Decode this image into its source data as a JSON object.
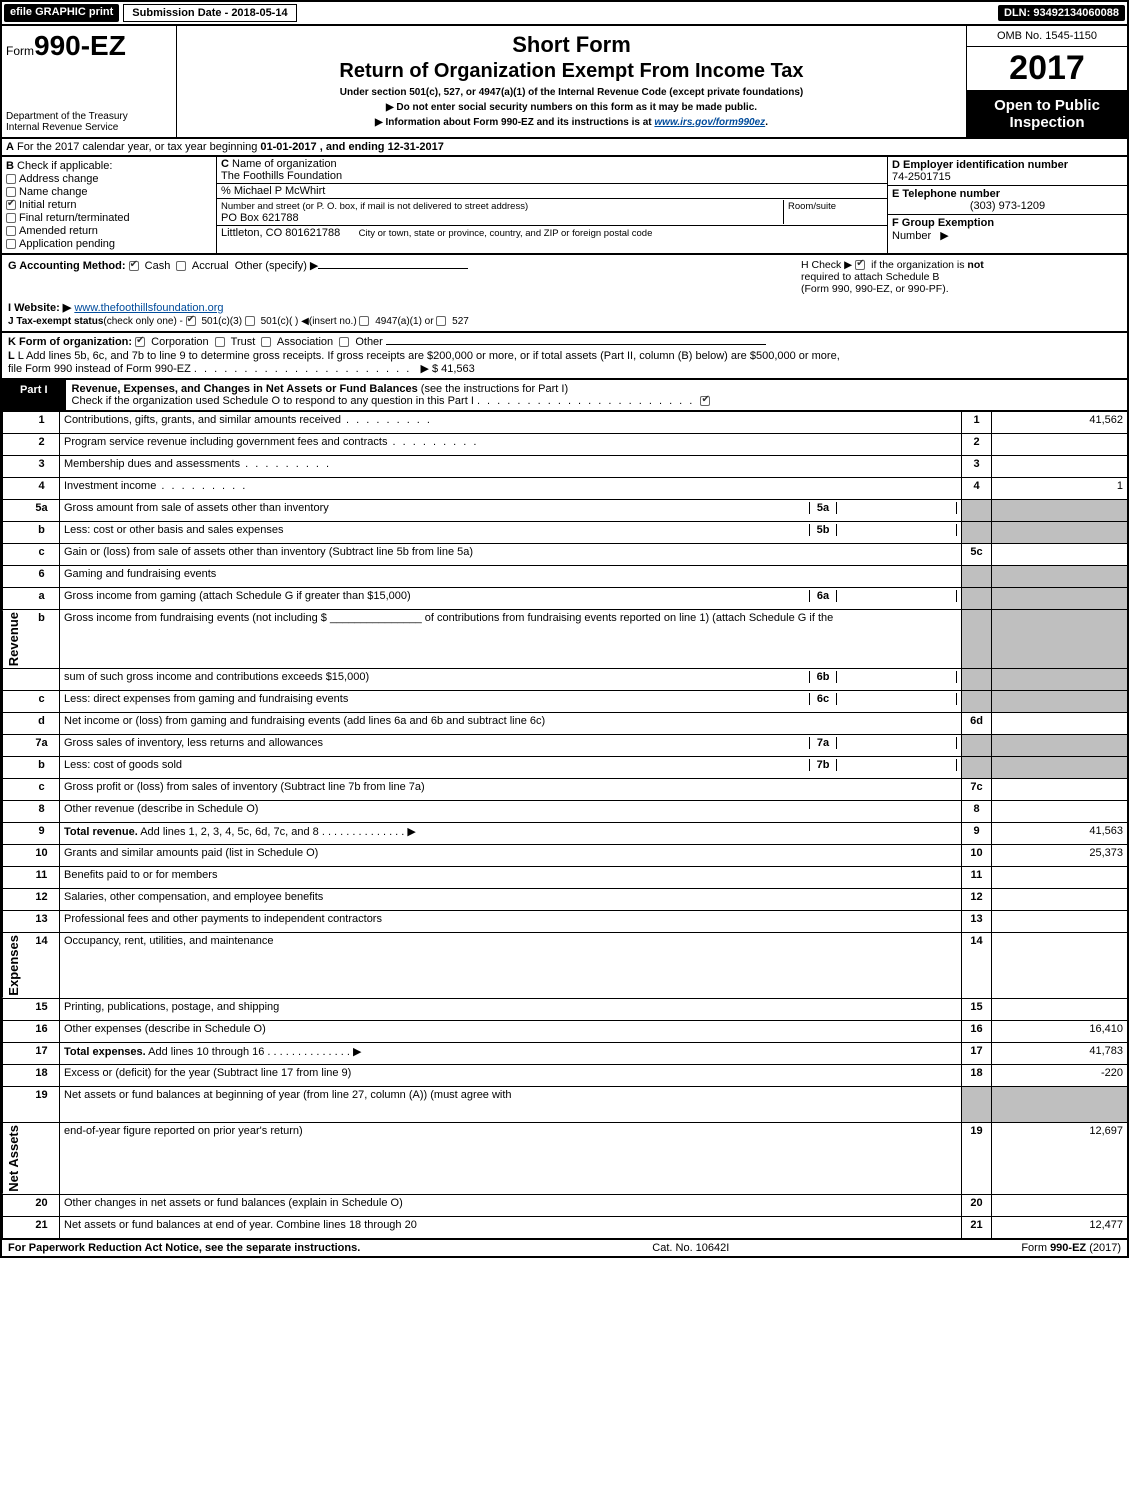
{
  "topbar": {
    "efile": "efile GRAPHIC print",
    "submission_label": "Submission Date - 2018-05-14",
    "dln": "DLN: 93492134060088"
  },
  "header": {
    "form_prefix": "Form",
    "form_no": "990-EZ",
    "dept1": "Department of the Treasury",
    "dept2": "Internal Revenue Service",
    "shortform": "Short Form",
    "title": "Return of Organization Exempt From Income Tax",
    "subtitle": "Under section 501(c), 527, or 4947(a)(1) of the Internal Revenue Code (except private foundations)",
    "warn1": "Do not enter social security numbers on this form as it may be made public.",
    "warn2_pre": "Information about Form 990-EZ and its instructions is at ",
    "warn2_link": "www.irs.gov/form990ez",
    "warn2_post": ".",
    "omb": "OMB No. 1545-1150",
    "year": "2017",
    "open1": "Open to Public",
    "open2": "Inspection"
  },
  "secA": {
    "A": "A",
    "text_pre": "For the 2017 calendar year, or tax year beginning ",
    "begin": "01-01-2017",
    "mid": ", and ending ",
    "end": "12-31-2017"
  },
  "secB": {
    "B": "B",
    "label": "Check if applicable:",
    "items": [
      {
        "label": "Address change",
        "checked": false
      },
      {
        "label": "Name change",
        "checked": false
      },
      {
        "label": "Initial return",
        "checked": true
      },
      {
        "label": "Final return/terminated",
        "checked": false
      },
      {
        "label": "Amended return",
        "checked": false
      },
      {
        "label": "Application pending",
        "checked": false
      }
    ]
  },
  "secC": {
    "c_label_bold": "C",
    "c_label": "Name of organization",
    "org": "The Foothills Foundation",
    "care_of": "% Michael P McWhirt",
    "addr_label": "Number and street (or P. O. box, if mail is not delivered to street address)",
    "room_label": "Room/suite",
    "addr": "PO Box 621788",
    "city_label": "City or town, state or province, country, and ZIP or foreign postal code",
    "city": "Littleton, CO  801621788"
  },
  "secD": {
    "d": "D Employer identification number",
    "ein": "74-2501715",
    "e": "E Telephone number",
    "phone": "(303) 973-1209",
    "f_label": "F Group Exemption",
    "f_label2": "Number",
    "f_arrow": "▶"
  },
  "secG": {
    "g_label": "G Accounting Method:",
    "cash": "Cash",
    "accrual": "Accrual",
    "other": "Other (specify) ▶",
    "h_text1": "H   Check ▶",
    "h_text2": "if the organization is",
    "h_not": "not",
    "h_text3": "required to attach Schedule B",
    "h_text4": "(Form 990, 990-EZ, or 990-PF).",
    "i_label": "I Website: ▶",
    "website": "www.thefoothillsfoundation.org",
    "j_label": "J Tax-exempt status",
    "j_note": "(check only one) -",
    "j1": "501(c)(3)",
    "j2": "501(c)(  )",
    "j2_ins": "◀(insert no.)",
    "j3": "4947(a)(1) or",
    "j4": "527"
  },
  "secK": {
    "k_label": "K Form of organization:",
    "opts": [
      "Corporation",
      "Trust",
      "Association",
      "Other"
    ],
    "checked_idx": 0,
    "l_text1": "L Add lines 5b, 6c, and 7b to line 9 to determine gross receipts. If gross receipts are $200,000 or more, or if total assets (Part II, column (B) below) are $500,000 or more,",
    "l_text2": "file Form 990 instead of Form 990-EZ",
    "l_amount": "▶ $ 41,563"
  },
  "partI": {
    "label": "Part I",
    "title_bold": "Revenue, Expenses, and Changes in Net Assets or Fund Balances",
    "title_rest": " (see the instructions for Part I)",
    "check_text": "Check if the organization used Schedule O to respond to any question in this Part I",
    "check_checked": true
  },
  "sections": {
    "revenue": "Revenue",
    "expenses": "Expenses",
    "netassets": "Net Assets"
  },
  "lines": [
    {
      "section": "revenue",
      "num": "1",
      "text": "Contributions, gifts, grants, and similar amounts received",
      "box": "1",
      "val": "41,562",
      "dots": true
    },
    {
      "section": "revenue",
      "num": "2",
      "text": "Program service revenue including government fees and contracts",
      "box": "2",
      "val": "",
      "dots": true
    },
    {
      "section": "revenue",
      "num": "3",
      "text": "Membership dues and assessments",
      "box": "3",
      "val": "",
      "dots": true
    },
    {
      "section": "revenue",
      "num": "4",
      "text": "Investment income",
      "box": "4",
      "val": "1",
      "dots": true
    },
    {
      "section": "revenue",
      "num": "5a",
      "text": "Gross amount from sale of assets other than inventory",
      "sub": "5a",
      "subval": "",
      "boxgrey": true,
      "dots": false
    },
    {
      "section": "revenue",
      "num": "b",
      "text": "Less: cost or other basis and sales expenses",
      "sub": "5b",
      "subval": "",
      "boxgrey": true,
      "dots": false
    },
    {
      "section": "revenue",
      "num": "c",
      "text": "Gain or (loss) from sale of assets other than inventory (Subtract line 5b from line 5a)",
      "box": "5c",
      "val": "",
      "dots": false
    },
    {
      "section": "revenue",
      "num": "6",
      "text": "Gaming and fundraising events",
      "boxgrey": true
    },
    {
      "section": "revenue",
      "num": "a",
      "text": "Gross income from gaming (attach Schedule G if greater than $15,000)",
      "sub": "6a",
      "subval": "",
      "boxgrey": true
    },
    {
      "section": "revenue",
      "num": "b",
      "text_html": "Gross income from fundraising events (not including $ _______________ of contributions from fundraising events reported on line 1) (attach Schedule G if the",
      "boxgrey": true,
      "tall": true
    },
    {
      "section": "revenue",
      "num": "",
      "text": "sum of such gross income and contributions exceeds $15,000)",
      "sub": "6b",
      "subval": "",
      "boxgrey": true
    },
    {
      "section": "revenue",
      "num": "c",
      "text": "Less: direct expenses from gaming and fundraising events",
      "sub": "6c",
      "subval": "",
      "boxgrey": true
    },
    {
      "section": "revenue",
      "num": "d",
      "text": "Net income or (loss) from gaming and fundraising events (add lines 6a and 6b and subtract line 6c)",
      "box": "6d",
      "val": ""
    },
    {
      "section": "revenue",
      "num": "7a",
      "text": "Gross sales of inventory, less returns and allowances",
      "sub": "7a",
      "subval": "",
      "boxgrey": true
    },
    {
      "section": "revenue",
      "num": "b",
      "text": "Less: cost of goods sold",
      "sub": "7b",
      "subval": "",
      "boxgrey": true
    },
    {
      "section": "revenue",
      "num": "c",
      "text": "Gross profit or (loss) from sales of inventory (Subtract line 7b from line 7a)",
      "box": "7c",
      "val": ""
    },
    {
      "section": "revenue",
      "num": "8",
      "text": "Other revenue (describe in Schedule O)",
      "box": "8",
      "val": ""
    },
    {
      "section": "revenue",
      "num": "9",
      "text_bold": "Total revenue.",
      "text": " Add lines 1, 2, 3, 4, 5c, 6d, 7c, and 8",
      "box": "9",
      "val": "41,563",
      "arrow": true
    },
    {
      "section": "expenses",
      "num": "10",
      "text": "Grants and similar amounts paid (list in Schedule O)",
      "box": "10",
      "val": "25,373"
    },
    {
      "section": "expenses",
      "num": "11",
      "text": "Benefits paid to or for members",
      "box": "11",
      "val": ""
    },
    {
      "section": "expenses",
      "num": "12",
      "text": "Salaries, other compensation, and employee benefits",
      "box": "12",
      "val": ""
    },
    {
      "section": "expenses",
      "num": "13",
      "text": "Professional fees and other payments to independent contractors",
      "box": "13",
      "val": ""
    },
    {
      "section": "expenses",
      "num": "14",
      "text": "Occupancy, rent, utilities, and maintenance",
      "box": "14",
      "val": ""
    },
    {
      "section": "expenses",
      "num": "15",
      "text": "Printing, publications, postage, and shipping",
      "box": "15",
      "val": ""
    },
    {
      "section": "expenses",
      "num": "16",
      "text": "Other expenses (describe in Schedule O)",
      "box": "16",
      "val": "16,410"
    },
    {
      "section": "expenses",
      "num": "17",
      "text_bold": "Total expenses.",
      "text": " Add lines 10 through 16",
      "box": "17",
      "val": "41,783",
      "arrow": true
    },
    {
      "section": "netassets",
      "num": "18",
      "text": "Excess or (deficit) for the year (Subtract line 17 from line 9)",
      "box": "18",
      "val": "-220"
    },
    {
      "section": "netassets",
      "num": "19",
      "text": "Net assets or fund balances at beginning of year (from line 27, column (A)) (must agree with",
      "boxgrey": true,
      "tall": true
    },
    {
      "section": "netassets",
      "num": "",
      "text": "end-of-year figure reported on prior year's return)",
      "box": "19",
      "val": "12,697"
    },
    {
      "section": "netassets",
      "num": "20",
      "text": "Other changes in net assets or fund balances (explain in Schedule O)",
      "box": "20",
      "val": ""
    },
    {
      "section": "netassets",
      "num": "21",
      "text": "Net assets or fund balances at end of year. Combine lines 18 through 20",
      "box": "21",
      "val": "12,477"
    }
  ],
  "footer": {
    "left": "For Paperwork Reduction Act Notice, see the separate instructions.",
    "mid": "Cat. No. 10642I",
    "right_pre": "Form ",
    "right_bold": "990-EZ",
    "right_post": " (2017)"
  },
  "colors": {
    "black": "#000000",
    "white": "#ffffff",
    "grey": "#bfbfbf",
    "link": "#004b9b"
  }
}
